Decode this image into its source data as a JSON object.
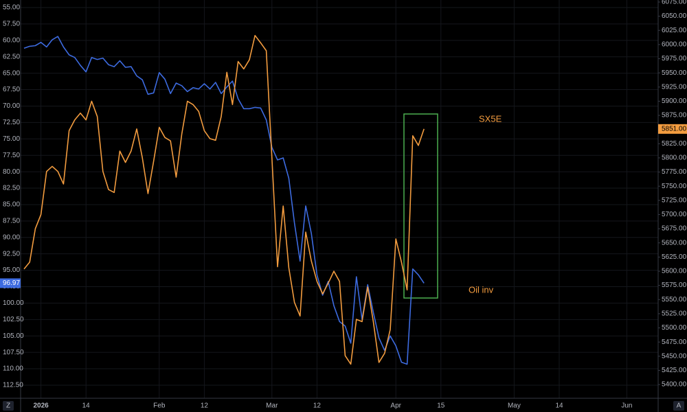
{
  "chart_data": {
    "type": "line",
    "categories": [
      null,
      null,
      null,
      "2026",
      null,
      null,
      null,
      null,
      null,
      null,
      null,
      "14",
      null,
      null,
      null,
      null,
      null,
      null,
      null,
      null,
      null,
      null,
      null,
      null,
      "Feb",
      null,
      null,
      null,
      null,
      null,
      null,
      null,
      "12",
      null,
      null,
      null,
      null,
      null,
      null,
      null,
      null,
      null,
      null,
      null,
      "Mar",
      null,
      null,
      null,
      null,
      null,
      null,
      null,
      "12",
      null,
      null,
      null,
      null,
      null,
      null,
      null,
      null,
      null,
      null,
      null,
      null,
      null,
      "Apr",
      null,
      null,
      null,
      null,
      null,
      null,
      null,
      "15",
      null,
      null,
      null,
      null,
      null,
      null,
      null,
      null,
      null,
      null,
      null,
      null,
      "May",
      null,
      null,
      null,
      null,
      null,
      null,
      null,
      "14",
      null,
      null,
      null,
      null,
      null,
      null,
      null,
      null,
      null,
      null,
      null,
      "Jun",
      null,
      null,
      null,
      null,
      null
    ],
    "series": [
      {
        "name": "Oil inv",
        "color": "#3d6be0",
        "axis": "y",
        "label_color": "#f39c3f",
        "values": [
          61.2,
          60.9,
          60.8,
          60.3,
          61.0,
          59.9,
          59.4,
          61.0,
          62.2,
          62.6,
          63.8,
          64.8,
          62.6,
          62.9,
          62.7,
          63.7,
          64.0,
          63.1,
          64.1,
          64.0,
          65.4,
          66.0,
          68.2,
          68.0,
          64.9,
          65.9,
          68.1,
          66.5,
          66.9,
          67.8,
          67.2,
          67.4,
          66.6,
          67.4,
          66.4,
          68.1,
          67.1,
          66.2,
          68.9,
          70.4,
          70.4,
          70.2,
          70.3,
          72.1,
          76.3,
          78.2,
          77.9,
          81.0,
          87.8,
          93.6,
          85.2,
          89.4,
          95.7,
          98.8,
          96.7,
          100.4,
          102.8,
          103.5,
          106.1,
          96.0,
          102.5,
          97.2,
          101.4,
          105.3,
          107.2,
          105.0,
          106.5,
          109.0,
          109.3,
          94.8,
          95.7,
          96.97,
          null,
          null,
          null,
          null,
          null,
          null,
          null,
          null,
          null,
          null,
          null,
          null,
          null,
          null,
          null,
          null,
          null,
          null,
          null,
          null,
          null,
          null,
          null,
          null,
          null,
          null,
          null,
          null,
          null,
          null,
          null,
          null,
          null,
          null,
          null,
          null,
          null,
          null,
          null,
          null,
          null
        ]
      },
      {
        "name": "SX5E",
        "color": "#f39c3f",
        "axis": "y2",
        "label_color": "#f39c3f",
        "last_label": "5851.00",
        "values": [
          5604,
          5616,
          5675,
          5700,
          5776,
          5785,
          5776,
          5754,
          5848,
          5867,
          5879,
          5867,
          5900,
          5873,
          5776,
          5744,
          5739,
          5812,
          5792,
          5812,
          5851,
          5800,
          5737,
          5794,
          5854,
          5836,
          5830,
          5766,
          5842,
          5900,
          5894,
          5882,
          5848,
          5834,
          5831,
          5873,
          5951,
          5894,
          5970,
          5957,
          5973,
          6016,
          6003,
          5989,
          5800,
          5608,
          5715,
          5606,
          5545,
          5521,
          5669,
          5618,
          5582,
          5560,
          5579,
          5600,
          5582,
          5451,
          5436,
          5515,
          5511,
          5572,
          5511,
          5439,
          5455,
          5497,
          5657,
          5616,
          5567,
          5839,
          5822,
          5851,
          null,
          null,
          null,
          null,
          null,
          null,
          null,
          null,
          null,
          null,
          null,
          null,
          null,
          null,
          null,
          null,
          null,
          null,
          null,
          null,
          null,
          null,
          null,
          null,
          null,
          null,
          null,
          null,
          null,
          null,
          null,
          null,
          null,
          null,
          null,
          null,
          null,
          null,
          null,
          null,
          null
        ]
      }
    ],
    "ylim": [
      114.49,
      53.85
    ],
    "yticks": [
      {
        "value": 55,
        "label": "55.00"
      },
      {
        "value": 57.5,
        "label": "57.50"
      },
      {
        "value": 60,
        "label": "60.00"
      },
      {
        "value": 62.5,
        "label": "62.50"
      },
      {
        "value": 65,
        "label": "65.00"
      },
      {
        "value": 67.5,
        "label": "67.50"
      },
      {
        "value": 70,
        "label": "70.00"
      },
      {
        "value": 72.5,
        "label": "72.50"
      },
      {
        "value": 75,
        "label": "75.00"
      },
      {
        "value": 77.5,
        "label": "77.50"
      },
      {
        "value": 80,
        "label": "80.00"
      },
      {
        "value": 82.5,
        "label": "82.50"
      },
      {
        "value": 85,
        "label": "85.00"
      },
      {
        "value": 87.5,
        "label": "87.50"
      },
      {
        "value": 90,
        "label": "90.00"
      },
      {
        "value": 92.5,
        "label": "92.50"
      },
      {
        "value": 95,
        "label": "95.00"
      },
      {
        "value": 97.5,
        "label": "97.50"
      },
      {
        "value": 100,
        "label": "100.00"
      },
      {
        "value": 102.5,
        "label": "102.50"
      },
      {
        "value": 105,
        "label": "105.00"
      },
      {
        "value": 107.5,
        "label": "107.50"
      },
      {
        "value": 110,
        "label": "110.00"
      },
      {
        "value": 112.5,
        "label": "112.50"
      }
    ],
    "y2lim": [
      5375.8,
      6078.6
    ],
    "y2ticks": [
      {
        "value": 5400,
        "label": "5400.00"
      },
      {
        "value": 5425,
        "label": "5425.00"
      },
      {
        "value": 5450,
        "label": "5450.00"
      },
      {
        "value": 5475,
        "label": "5475.00"
      },
      {
        "value": 5500,
        "label": "5500.00"
      },
      {
        "value": 5525,
        "label": "5525.00"
      },
      {
        "value": 5550,
        "label": "5550.00"
      },
      {
        "value": 5575,
        "label": "5575.00"
      },
      {
        "value": 5600,
        "label": "5600.00"
      },
      {
        "value": 5625,
        "label": "5625.00"
      },
      {
        "value": 5650,
        "label": "5650.00"
      },
      {
        "value": 5675,
        "label": "5675.00"
      },
      {
        "value": 5700,
        "label": "5700.00"
      },
      {
        "value": 5725,
        "label": "5725.00"
      },
      {
        "value": 5750,
        "label": "5750.00"
      },
      {
        "value": 5775,
        "label": "5775.00"
      },
      {
        "value": 5800,
        "label": "5800.00"
      },
      {
        "value": 5825,
        "label": "5825.00"
      },
      {
        "value": 5850,
        "label": "5850.00"
      },
      {
        "value": 5875,
        "label": "5875.00"
      },
      {
        "value": 5900,
        "label": "5900.00"
      },
      {
        "value": 5925,
        "label": "5925.00"
      },
      {
        "value": 5950,
        "label": "5950.00"
      },
      {
        "value": 5975,
        "label": "5975.00"
      },
      {
        "value": 6000,
        "label": "6000.00"
      },
      {
        "value": 6025,
        "label": "6025.00"
      },
      {
        "value": 6050,
        "label": "6050.00"
      },
      {
        "value": 6075,
        "label": "6075.00"
      }
    ],
    "grid": true
  },
  "controls": {
    "left": "Z",
    "right": "A"
  }
}
